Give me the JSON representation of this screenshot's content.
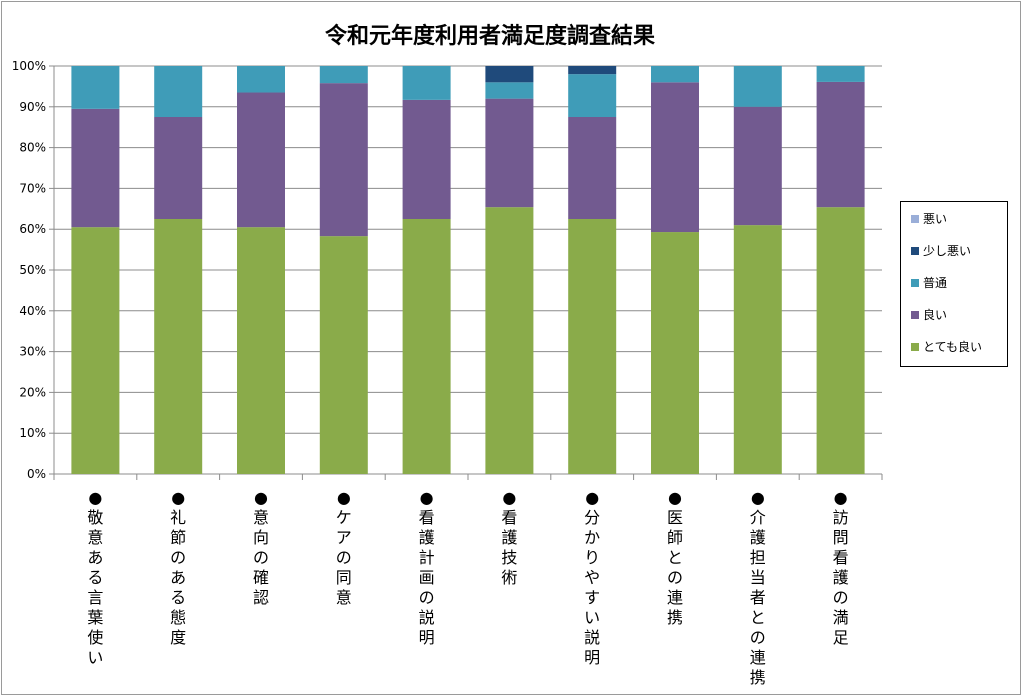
{
  "chart_data": {
    "type": "bar",
    "stacked": true,
    "percent": true,
    "title": "令和元年度利用者満足度調査結果",
    "categories": [
      "●敬意ある言葉使い",
      "●礼節のある態度",
      "●意向の確認",
      "●ケアの同意",
      "●看護計画の説明",
      "●看護技術",
      "●分かりやすい説明",
      "●医師との連携",
      "●介護担当者との連携",
      "●訪問看護の満足"
    ],
    "series": [
      {
        "name": "とても良い",
        "color": "#8aab4a",
        "values": [
          60.5,
          62.5,
          60.5,
          58.3,
          62.5,
          65.4,
          62.5,
          59.3,
          61.0,
          65.4
        ]
      },
      {
        "name": "良い",
        "color": "#725a90",
        "values": [
          29.0,
          25.0,
          33.0,
          37.5,
          29.2,
          26.6,
          25.0,
          36.7,
          29.0,
          30.7
        ]
      },
      {
        "name": "普通",
        "color": "#3f9cb8",
        "values": [
          10.5,
          12.5,
          6.5,
          4.2,
          8.3,
          4.0,
          10.5,
          4.0,
          10.0,
          3.9
        ]
      },
      {
        "name": "少し悪い",
        "color": "#1f4a7b",
        "values": [
          0,
          0,
          0,
          0,
          0,
          4.0,
          2.0,
          0,
          0,
          0
        ]
      },
      {
        "name": "悪い",
        "color": "#9aaed8",
        "values": [
          0,
          0,
          0,
          0,
          0,
          0,
          0,
          0,
          0,
          0
        ]
      }
    ],
    "yticks": [
      "0%",
      "10%",
      "20%",
      "30%",
      "40%",
      "50%",
      "60%",
      "70%",
      "80%",
      "90%",
      "100%"
    ],
    "ylim": [
      0,
      100
    ],
    "grid": true,
    "legend_position": "right",
    "legend_order": [
      "悪い",
      "少し悪い",
      "普通",
      "良い",
      "とても良い"
    ]
  }
}
